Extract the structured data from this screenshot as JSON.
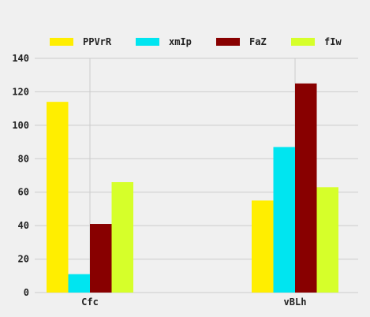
{
  "chart_data": {
    "type": "bar",
    "title": "",
    "xlabel": "",
    "ylabel": "",
    "categories": [
      "Cfc",
      "vBLh"
    ],
    "series": [
      {
        "name": "PPVrR",
        "color": "#ffee00",
        "values": [
          114,
          55
        ]
      },
      {
        "name": "xmIp",
        "color": "#00e5f0",
        "values": [
          11,
          87
        ]
      },
      {
        "name": "FaZ",
        "color": "#880000",
        "values": [
          41,
          125
        ]
      },
      {
        "name": "fIw",
        "color": "#d6ff2a",
        "values": [
          66,
          63
        ]
      }
    ],
    "ylim": [
      0,
      140
    ],
    "yticks": [
      0,
      20,
      40,
      60,
      80,
      100,
      120,
      140
    ],
    "grid": true,
    "legend_position": "top",
    "background": "#f0f0f0",
    "grid_color": "#cbcbcb"
  }
}
